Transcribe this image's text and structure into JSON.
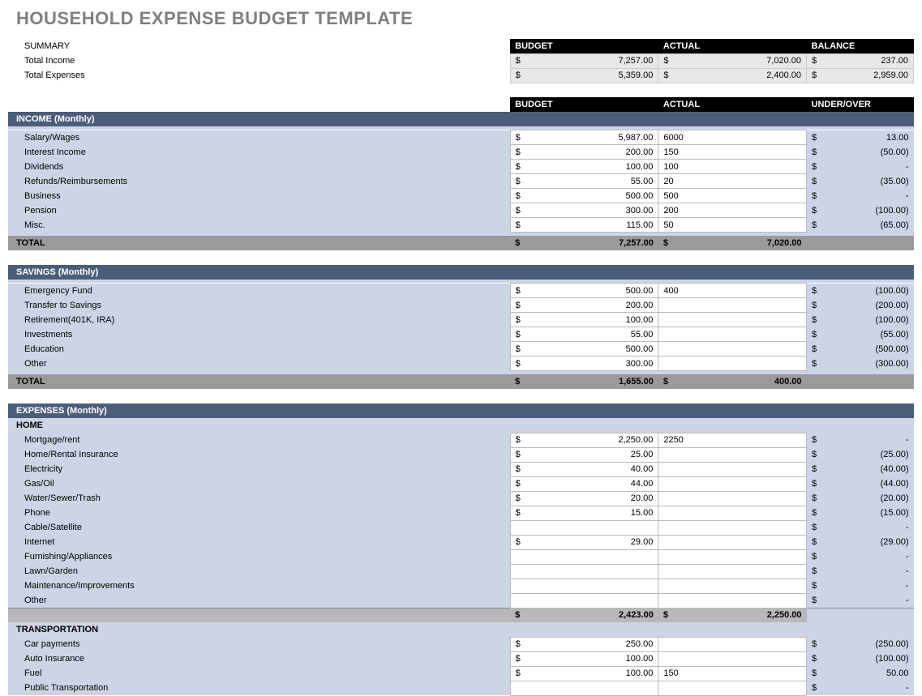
{
  "title": "HOUSEHOLD EXPENSE BUDGET TEMPLATE",
  "summary": {
    "label": "SUMMARY",
    "headers": {
      "budget": "BUDGET",
      "actual": "ACTUAL",
      "balance": "BALANCE"
    },
    "rows": [
      {
        "label": "Total Income",
        "budget": "7,257.00",
        "actual": "7,020.00",
        "balance": "237.00"
      },
      {
        "label": "Total Expenses",
        "budget": "5,359.00",
        "actual": "2,400.00",
        "balance": "2,959.00"
      }
    ]
  },
  "col_headers": {
    "budget": "BUDGET",
    "actual": "ACTUAL",
    "under_over": "UNDER/OVER"
  },
  "sections": [
    {
      "title": "INCOME (Monthly)",
      "rows": [
        {
          "label": "Salary/Wages",
          "budget": "5,987.00",
          "actual": "6000",
          "uo": "13.00"
        },
        {
          "label": "Interest Income",
          "budget": "200.00",
          "actual": "150",
          "uo": "(50.00)"
        },
        {
          "label": "Dividends",
          "budget": "100.00",
          "actual": "100",
          "uo": "-"
        },
        {
          "label": "Refunds/Reimbursements",
          "budget": "55.00",
          "actual": "20",
          "uo": "(35.00)"
        },
        {
          "label": "Business",
          "budget": "500.00",
          "actual": "500",
          "uo": "-"
        },
        {
          "label": "Pension",
          "budget": "300.00",
          "actual": "200",
          "uo": "(100.00)"
        },
        {
          "label": "Misc.",
          "budget": "115.00",
          "actual": "50",
          "uo": "(65.00)"
        }
      ],
      "total": {
        "label": "TOTAL",
        "budget": "7,257.00",
        "actual": "7,020.00"
      }
    },
    {
      "title": "SAVINGS (Monthly)",
      "rows": [
        {
          "label": "Emergency Fund",
          "budget": "500.00",
          "actual": "400",
          "uo": "(100.00)"
        },
        {
          "label": "Transfer to Savings",
          "budget": "200.00",
          "actual": "",
          "uo": "(200.00)"
        },
        {
          "label": "Retirement(401K, IRA)",
          "budget": "100.00",
          "actual": "",
          "uo": "(100.00)"
        },
        {
          "label": "Investments",
          "budget": "55.00",
          "actual": "",
          "uo": "(55.00)"
        },
        {
          "label": "Education",
          "budget": "500.00",
          "actual": "",
          "uo": "(500.00)"
        },
        {
          "label": "Other",
          "budget": "300.00",
          "actual": "",
          "uo": "(300.00)"
        }
      ],
      "total": {
        "label": "TOTAL",
        "budget": "1,655.00",
        "actual": "400.00"
      }
    },
    {
      "title": "EXPENSES (Monthly)",
      "subsections": [
        {
          "title": "HOME",
          "rows": [
            {
              "label": "Mortgage/rent",
              "budget": "2,250.00",
              "actual": "2250",
              "uo": "-"
            },
            {
              "label": "Home/Rental Insurance",
              "budget": "25.00",
              "actual": "",
              "uo": "(25.00)"
            },
            {
              "label": "Electricity",
              "budget": "40.00",
              "actual": "",
              "uo": "(40.00)"
            },
            {
              "label": "Gas/Oil",
              "budget": "44.00",
              "actual": "",
              "uo": "(44.00)"
            },
            {
              "label": "Water/Sewer/Trash",
              "budget": "20.00",
              "actual": "",
              "uo": "(20.00)"
            },
            {
              "label": "Phone",
              "budget": "15.00",
              "actual": "",
              "uo": "(15.00)"
            },
            {
              "label": "Cable/Satellite",
              "budget": "",
              "actual": "",
              "uo": "-"
            },
            {
              "label": "Internet",
              "budget": "29.00",
              "actual": "",
              "uo": "(29.00)"
            },
            {
              "label": "Furnishing/Appliances",
              "budget": "",
              "actual": "",
              "uo": "-"
            },
            {
              "label": "Lawn/Garden",
              "budget": "",
              "actual": "",
              "uo": "-"
            },
            {
              "label": "Maintenance/Improvements",
              "budget": "",
              "actual": "",
              "uo": "-"
            },
            {
              "label": "Other",
              "budget": "",
              "actual": "",
              "uo": "-"
            }
          ],
          "subtotal": {
            "budget": "2,423.00",
            "actual": "2,250.00"
          }
        },
        {
          "title": "TRANSPORTATION",
          "rows": [
            {
              "label": "Car payments",
              "budget": "250.00",
              "actual": "",
              "uo": "(250.00)"
            },
            {
              "label": "Auto Insurance",
              "budget": "100.00",
              "actual": "",
              "uo": "(100.00)"
            },
            {
              "label": "Fuel",
              "budget": "100.00",
              "actual": "150",
              "uo": "50.00"
            },
            {
              "label": "Public Transportation",
              "budget": "",
              "actual": "",
              "uo": "-"
            }
          ]
        }
      ]
    }
  ],
  "colors": {
    "title": "#808080",
    "section_header_bg": "#4a5e7a",
    "section_body_bg": "#ccd4e6",
    "black_header": "#000000",
    "total_row": "#9a9a9a",
    "subtotal_row": "#b8b8b8",
    "gray_cell": "#e8e8e8"
  }
}
